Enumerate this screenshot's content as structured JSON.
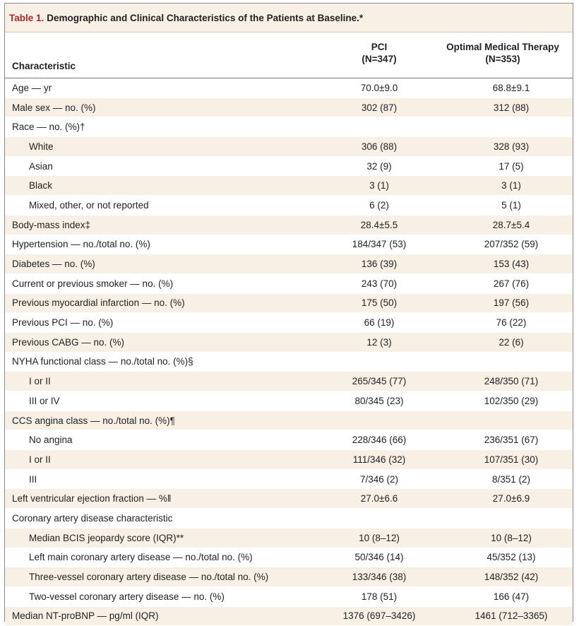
{
  "table": {
    "number": "Table 1.",
    "title": "Demographic and Clinical Characteristics of the Patients at Baseline.*",
    "headers": {
      "characteristic": "Characteristic",
      "pci_line1": "PCI",
      "pci_line2": "(N=347)",
      "omt_line1": "Optimal Medical Therapy",
      "omt_line2": "(N=353)"
    },
    "rows": [
      {
        "label": "Age — yr",
        "pci": "70.0±9.0",
        "omt": "68.8±9.1",
        "indent": false
      },
      {
        "label": "Male sex — no. (%)",
        "pci": "302 (87)",
        "omt": "312 (88)",
        "indent": false
      },
      {
        "label": "Race — no. (%)†",
        "pci": "",
        "omt": "",
        "indent": false
      },
      {
        "label": "White",
        "pci": "306 (88)",
        "omt": "328 (93)",
        "indent": true
      },
      {
        "label": "Asian",
        "pci": "32 (9)",
        "omt": "17 (5)",
        "indent": true
      },
      {
        "label": "Black",
        "pci": "3 (1)",
        "omt": "3 (1)",
        "indent": true
      },
      {
        "label": "Mixed, other, or not reported",
        "pci": "6 (2)",
        "omt": "5 (1)",
        "indent": true
      },
      {
        "label": "Body-mass index‡",
        "pci": "28.4±5.5",
        "omt": "28.7±5.4",
        "indent": false
      },
      {
        "label": "Hypertension — no./total no. (%)",
        "pci": "184/347 (53)",
        "omt": "207/352 (59)",
        "indent": false
      },
      {
        "label": "Diabetes — no. (%)",
        "pci": "136 (39)",
        "omt": "153 (43)",
        "indent": false
      },
      {
        "label": "Current or previous smoker — no. (%)",
        "pci": "243 (70)",
        "omt": "267 (76)",
        "indent": false
      },
      {
        "label": "Previous myocardial infarction — no. (%)",
        "pci": "175 (50)",
        "omt": "197 (56)",
        "indent": false
      },
      {
        "label": "Previous PCI — no. (%)",
        "pci": "66 (19)",
        "omt": "76 (22)",
        "indent": false
      },
      {
        "label": "Previous CABG — no. (%)",
        "pci": "12 (3)",
        "omt": "22 (6)",
        "indent": false
      },
      {
        "label": "NYHA functional class — no./total no. (%)§",
        "pci": "",
        "omt": "",
        "indent": false
      },
      {
        "label": "I or II",
        "pci": "265/345 (77)",
        "omt": "248/350 (71)",
        "indent": true
      },
      {
        "label": "III or IV",
        "pci": "80/345 (23)",
        "omt": "102/350 (29)",
        "indent": true
      },
      {
        "label": "CCS angina class — no./total no. (%)¶",
        "pci": "",
        "omt": "",
        "indent": false
      },
      {
        "label": "No angina",
        "pci": "228/346 (66)",
        "omt": "236/351 (67)",
        "indent": true
      },
      {
        "label": "I or II",
        "pci": "111/346 (32)",
        "omt": "107/351 (30)",
        "indent": true
      },
      {
        "label": "III",
        "pci": "7/346 (2)",
        "omt": "8/351 (2)",
        "indent": true
      },
      {
        "label": "Left ventricular ejection fraction — %‖",
        "pci": "27.0±6.6",
        "omt": "27.0±6.9",
        "indent": false
      },
      {
        "label": "Coronary artery disease characteristic",
        "pci": "",
        "omt": "",
        "indent": false
      },
      {
        "label": "Median BCIS jeopardy score (IQR)**",
        "pci": "10 (8–12)",
        "omt": "10 (8–12)",
        "indent": true
      },
      {
        "label": "Left main coronary artery disease — no./total no. (%)",
        "pci": "50/346 (14)",
        "omt": "45/352 (13)",
        "indent": true
      },
      {
        "label": "Three-vessel coronary artery disease — no./total no. (%)",
        "pci": "133/346 (38)",
        "omt": "148/352 (42)",
        "indent": true
      },
      {
        "label": "Two-vessel coronary artery disease — no. (%)",
        "pci": "178 (51)",
        "omt": "166 (47)",
        "indent": true
      },
      {
        "label": "Median NT-proBNP — pg/ml (IQR)",
        "pci": "1376 (697–3426)",
        "omt": "1461 (712–3365)",
        "indent": false
      }
    ],
    "colors": {
      "title_number": "#b0282a",
      "shade": "#f8efe5",
      "border": "#8a8a8a"
    }
  }
}
